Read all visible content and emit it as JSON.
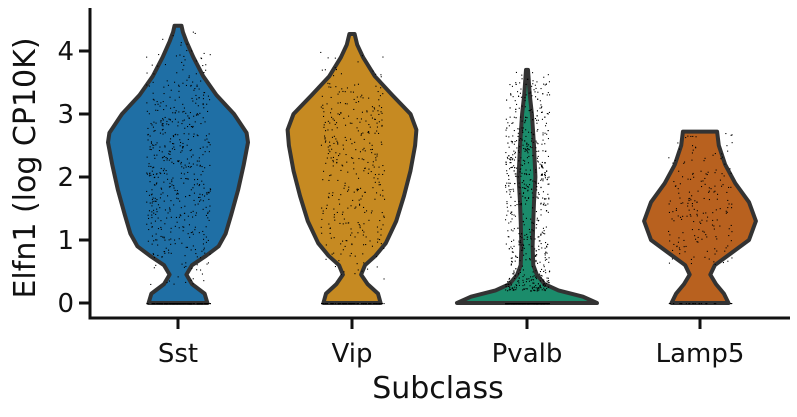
{
  "chart_data": {
    "type": "violin",
    "xlabel": "Subclass",
    "ylabel": "Elfn1 (log CP10K)",
    "ylim": [
      -0.25,
      4.65
    ],
    "yticks": [
      0,
      1,
      2,
      3,
      4
    ],
    "categories": [
      "Sst",
      "Vip",
      "Pvalb",
      "Lamp5"
    ],
    "series": [
      {
        "category": "Sst",
        "color": "#1f6fa5",
        "max": 4.4,
        "outline": [
          [
            0.0,
            0.42
          ],
          [
            0.15,
            0.38
          ],
          [
            0.3,
            0.2
          ],
          [
            0.45,
            0.12
          ],
          [
            0.6,
            0.2
          ],
          [
            0.75,
            0.4
          ],
          [
            0.9,
            0.58
          ],
          [
            1.1,
            0.68
          ],
          [
            1.4,
            0.76
          ],
          [
            1.8,
            0.86
          ],
          [
            2.2,
            0.94
          ],
          [
            2.55,
            1.0
          ],
          [
            2.7,
            0.98
          ],
          [
            3.0,
            0.8
          ],
          [
            3.3,
            0.55
          ],
          [
            3.6,
            0.36
          ],
          [
            3.9,
            0.22
          ],
          [
            4.15,
            0.12
          ],
          [
            4.3,
            0.07
          ],
          [
            4.4,
            0.05
          ]
        ],
        "points": {
          "count": 700,
          "zero_fraction": 0.22,
          "range": [
            0.3,
            4.35
          ]
        }
      },
      {
        "category": "Vip",
        "color": "#c68a22",
        "max": 4.27,
        "outline": [
          [
            0.0,
            0.44
          ],
          [
            0.15,
            0.4
          ],
          [
            0.3,
            0.24
          ],
          [
            0.45,
            0.14
          ],
          [
            0.6,
            0.2
          ],
          [
            0.75,
            0.36
          ],
          [
            0.95,
            0.52
          ],
          [
            1.3,
            0.68
          ],
          [
            1.7,
            0.8
          ],
          [
            2.1,
            0.9
          ],
          [
            2.5,
            0.97
          ],
          [
            2.75,
            0.99
          ],
          [
            3.0,
            0.9
          ],
          [
            3.3,
            0.62
          ],
          [
            3.6,
            0.35
          ],
          [
            3.9,
            0.17
          ],
          [
            4.1,
            0.08
          ],
          [
            4.27,
            0.04
          ]
        ],
        "points": {
          "count": 450,
          "zero_fraction": 0.2,
          "range": [
            0.3,
            4.0
          ]
        }
      },
      {
        "category": "Pvalb",
        "color": "#1b8c6b",
        "max": 3.7,
        "outline": [
          [
            0.0,
            1.0
          ],
          [
            0.1,
            0.8
          ],
          [
            0.2,
            0.45
          ],
          [
            0.3,
            0.25
          ],
          [
            0.45,
            0.14
          ],
          [
            0.6,
            0.09
          ],
          [
            0.9,
            0.08
          ],
          [
            1.3,
            0.09
          ],
          [
            1.6,
            0.1
          ],
          [
            2.0,
            0.12
          ],
          [
            2.5,
            0.1
          ],
          [
            3.0,
            0.07
          ],
          [
            3.3,
            0.04
          ],
          [
            3.7,
            0.015
          ]
        ],
        "points": {
          "count": 900,
          "zero_fraction": 0.18,
          "range": [
            0.2,
            3.7
          ]
        }
      },
      {
        "category": "Lamp5",
        "color": "#b8611f",
        "max": 2.72,
        "outline": [
          [
            0.0,
            0.5
          ],
          [
            0.15,
            0.42
          ],
          [
            0.3,
            0.28
          ],
          [
            0.45,
            0.18
          ],
          [
            0.6,
            0.26
          ],
          [
            0.8,
            0.56
          ],
          [
            1.0,
            0.86
          ],
          [
            1.3,
            0.98
          ],
          [
            1.6,
            0.86
          ],
          [
            1.9,
            0.62
          ],
          [
            2.2,
            0.44
          ],
          [
            2.5,
            0.33
          ],
          [
            2.72,
            0.3
          ]
        ],
        "points": {
          "count": 220,
          "zero_fraction": 0.12,
          "range": [
            0.6,
            2.7
          ]
        }
      }
    ],
    "grid": false,
    "legend": "none"
  }
}
